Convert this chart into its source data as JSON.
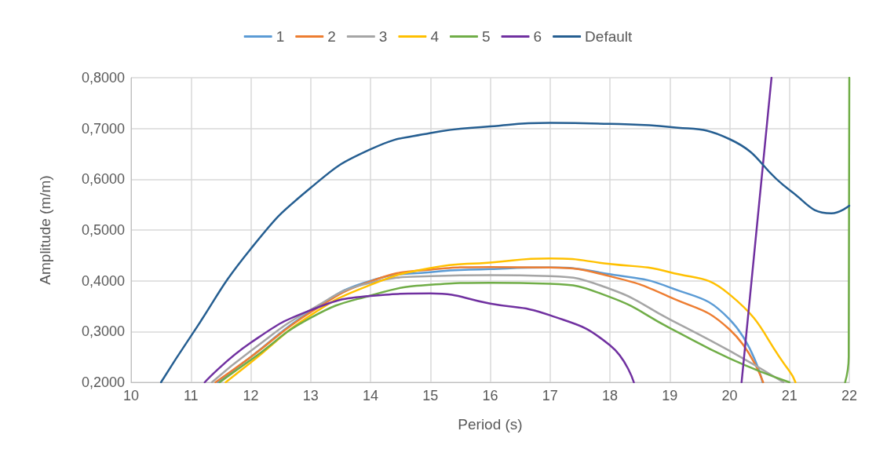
{
  "chart_data": {
    "type": "line",
    "xlabel": "Period (s)",
    "ylabel": "Amplitude (m/m)",
    "xlim": [
      10,
      22
    ],
    "xticks": [
      10,
      11,
      12,
      13,
      14,
      15,
      16,
      17,
      18,
      19,
      20,
      21,
      22
    ],
    "ylim": [
      0.2,
      0.8
    ],
    "yticks": [
      {
        "value": 0.2,
        "label": "0,2000"
      },
      {
        "value": 0.3,
        "label": "0,3000"
      },
      {
        "value": 0.4,
        "label": "0,4000"
      },
      {
        "value": 0.5,
        "label": "0,5000"
      },
      {
        "value": 0.6,
        "label": "0,6000"
      },
      {
        "value": 0.7,
        "label": "0,7000"
      },
      {
        "value": 0.8,
        "label": "0,8000"
      }
    ],
    "grid": true,
    "legend": "top",
    "marker": "none",
    "series": [
      {
        "name": "1",
        "color": "#5b9bd5",
        "x": [
          11.45,
          12,
          13,
          14,
          15,
          16,
          17,
          18,
          19,
          20,
          20.55
        ],
        "values": [
          0.2,
          0.25,
          0.34,
          0.4,
          0.417,
          0.423,
          0.426,
          0.413,
          0.387,
          0.324,
          0.2
        ]
      },
      {
        "name": "2",
        "color": "#ed7d31",
        "x": [
          11.41,
          12,
          13,
          14,
          15,
          16,
          17,
          18,
          19,
          20,
          20.56
        ],
        "values": [
          0.2,
          0.25,
          0.338,
          0.399,
          0.422,
          0.427,
          0.426,
          0.409,
          0.368,
          0.304,
          0.2
        ]
      },
      {
        "name": "3",
        "color": "#a5a5a5",
        "x": [
          11.35,
          12,
          13,
          14,
          15,
          16,
          17,
          18,
          19,
          20,
          20.9
        ],
        "values": [
          0.2,
          0.262,
          0.343,
          0.396,
          0.409,
          0.411,
          0.409,
          0.384,
          0.324,
          0.262,
          0.2
        ]
      },
      {
        "name": "4",
        "color": "#ffc000",
        "x": [
          11.58,
          12,
          13,
          14,
          15,
          16,
          17,
          18,
          19,
          20,
          21,
          21.1
        ],
        "values": [
          0.2,
          0.239,
          0.332,
          0.392,
          0.425,
          0.436,
          0.444,
          0.433,
          0.417,
          0.373,
          0.222,
          0.2
        ]
      },
      {
        "name": "5",
        "color": "#70ad47",
        "x": [
          11.48,
          12,
          13,
          14,
          15,
          16,
          17,
          18,
          19,
          20,
          21,
          21.5,
          21.93,
          21.99,
          22
        ],
        "values": [
          0.2,
          0.244,
          0.327,
          0.371,
          0.392,
          0.396,
          0.394,
          0.368,
          0.307,
          0.247,
          0.2,
          null,
          0.2,
          0.25,
          0.8
        ]
      },
      {
        "name": "6",
        "color": "#7030a0",
        "x": [
          11.23,
          12,
          13,
          14,
          15,
          16,
          17,
          18,
          18.4,
          19.3,
          20.2,
          20.7
        ],
        "values": [
          0.2,
          0.278,
          0.342,
          0.37,
          0.375,
          0.355,
          0.332,
          0.273,
          0.2,
          null,
          0.2,
          0.8
        ]
      },
      {
        "name": "Default",
        "color": "#255e91",
        "x": [
          10.5,
          11,
          12,
          13,
          14,
          15,
          16,
          17,
          18,
          19,
          20,
          21,
          21.7,
          22
        ],
        "values": [
          0.2,
          0.291,
          0.463,
          0.583,
          0.659,
          0.691,
          0.704,
          0.711,
          0.709,
          0.703,
          0.679,
          0.579,
          0.533,
          0.548
        ]
      }
    ]
  }
}
